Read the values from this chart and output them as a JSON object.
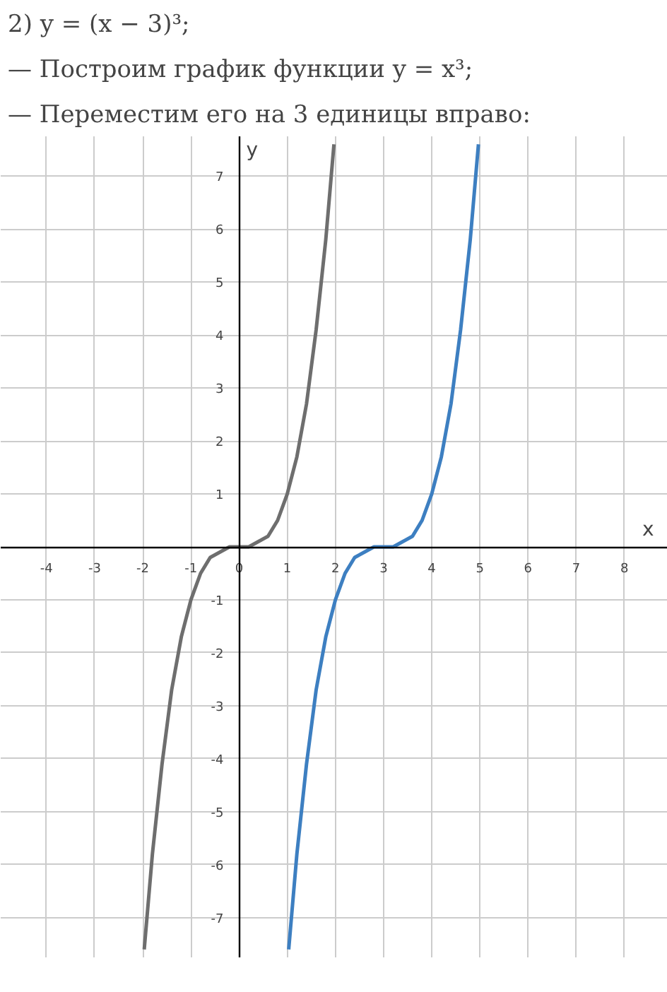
{
  "chart_data": {
    "type": "line",
    "title": "2) y = (x − 3)³;",
    "annotations": [
      "— Построим график функции y = x³;",
      "— Переместим его на 3 единицы вправо:"
    ],
    "xlabel": "x",
    "ylabel": "y",
    "series": [
      {
        "color": "#6e6e6e",
        "x": [
          -1.97,
          -1.8,
          -1.6,
          -1.4,
          -1.2,
          -1,
          -0.8,
          -0.6,
          -0.4,
          -0.2,
          0,
          0.2,
          0.4,
          0.6,
          0.8,
          1,
          1.2,
          1.4,
          1.6,
          1.8,
          1.97
        ],
        "values": [
          -7.6,
          -5.8,
          -4.1,
          -2.7,
          -1.7,
          -1,
          -0.5,
          -0.2,
          -0.1,
          0,
          0,
          0,
          0.1,
          0.2,
          0.5,
          1,
          1.7,
          2.7,
          4.1,
          5.8,
          7.6
        ]
      },
      {
        "color": "#3d7fc1",
        "x": [
          1.03,
          1.2,
          1.4,
          1.6,
          1.8,
          2,
          2.2,
          2.4,
          2.6,
          2.8,
          3,
          3.2,
          3.4,
          3.6,
          3.8,
          4,
          4.2,
          4.4,
          4.6,
          4.8,
          4.97
        ],
        "values": [
          -7.6,
          -5.8,
          -4.1,
          -2.7,
          -1.7,
          -1,
          -0.5,
          -0.2,
          -0.1,
          0,
          0,
          0,
          0.1,
          0.2,
          0.5,
          1,
          1.7,
          2.7,
          4.1,
          5.8,
          7.6
        ]
      }
    ],
    "xlim": [
      -4.95,
      8.9
    ],
    "ylim": [
      -7.75,
      7.75
    ],
    "xticks": [
      -4,
      -3,
      -2,
      -1,
      0,
      1,
      2,
      3,
      4,
      5,
      6,
      7,
      8
    ],
    "yticks": [
      -7,
      -6,
      -5,
      -4,
      -3,
      -2,
      -1,
      1,
      2,
      3,
      4,
      5,
      6,
      7
    ],
    "grid": true,
    "marker": "none",
    "line_style": "solid"
  }
}
